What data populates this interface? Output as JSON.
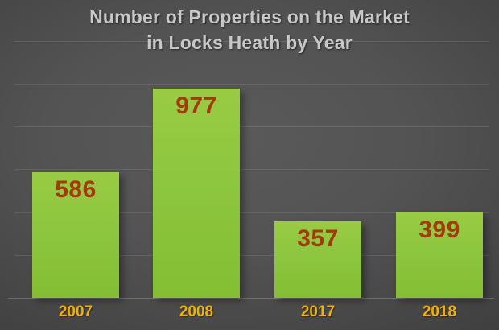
{
  "chart_data": {
    "type": "bar",
    "title": "Number of Properties on the Market in Locks Heath by Year",
    "title_lines": [
      "Number of Properties on the Market",
      "in Locks Heath by Year"
    ],
    "categories": [
      "2007",
      "2008",
      "2017",
      "2018"
    ],
    "values": [
      586,
      977,
      357,
      399
    ],
    "xlabel": "",
    "ylabel": "",
    "ylim": [
      0,
      1200
    ],
    "gridline_step": 200,
    "grid": true,
    "legend": false,
    "colors": {
      "bar": "#8dc63f",
      "value_label": "#a43a0c",
      "category_label": "#f2b200",
      "title": "#c8c8c8",
      "background_center": "#585858",
      "background_edge": "#242424",
      "gridline": "#6a6a6a"
    }
  }
}
